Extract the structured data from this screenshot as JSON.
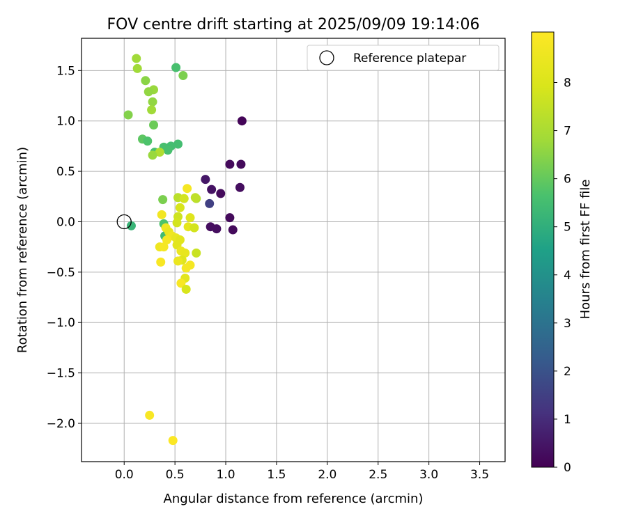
{
  "chart_data": {
    "type": "scatter",
    "title": "FOV centre drift starting at 2025/09/09 19:14:06",
    "xlabel": "Angular distance from reference (arcmin)",
    "ylabel": "Rotation from reference (arcmin)",
    "xlim": [
      -0.42,
      3.75
    ],
    "ylim": [
      -2.38,
      1.82
    ],
    "xticks": [
      0.0,
      0.5,
      1.0,
      1.5,
      2.0,
      2.5,
      3.0,
      3.5
    ],
    "xtick_labels": [
      "0.0",
      "0.5",
      "1.0",
      "1.5",
      "2.0",
      "2.5",
      "3.0",
      "3.5"
    ],
    "yticks": [
      1.5,
      1.0,
      0.5,
      0.0,
      -0.5,
      -1.0,
      -1.5,
      -2.0
    ],
    "ytick_labels": [
      "1.5",
      "1.0",
      "0.5",
      "0.0",
      "−0.5",
      "−1.0",
      "−1.5",
      "−2.0"
    ],
    "grid": true,
    "legend": {
      "position": "top-right",
      "entries": [
        "Reference platepar"
      ]
    },
    "reference_point": {
      "x": 0.0,
      "y": 0.0
    },
    "colorbar": {
      "label": "Hours from first FF file",
      "colormap": "viridis",
      "range": [
        0,
        9.05
      ],
      "ticks": [
        0,
        1,
        2,
        3,
        4,
        5,
        6,
        7,
        8
      ],
      "tick_labels": [
        "0",
        "1",
        "2",
        "3",
        "4",
        "5",
        "6",
        "7",
        "8"
      ]
    },
    "points": [
      {
        "x": 1.16,
        "y": 1.0,
        "h": 0.1
      },
      {
        "x": 1.04,
        "y": 0.57,
        "h": 0.2
      },
      {
        "x": 1.15,
        "y": 0.57,
        "h": 0.2
      },
      {
        "x": 1.14,
        "y": 0.34,
        "h": 0.3
      },
      {
        "x": 0.8,
        "y": 0.42,
        "h": 0.5
      },
      {
        "x": 0.86,
        "y": 0.32,
        "h": 0.4
      },
      {
        "x": 0.95,
        "y": 0.28,
        "h": 0.2
      },
      {
        "x": 0.84,
        "y": 0.18,
        "h": 1.5
      },
      {
        "x": 1.04,
        "y": 0.04,
        "h": 0.2
      },
      {
        "x": 0.85,
        "y": -0.05,
        "h": 0.3
      },
      {
        "x": 0.91,
        "y": -0.07,
        "h": 0.3
      },
      {
        "x": 1.07,
        "y": -0.08,
        "h": 0.2
      },
      {
        "x": 0.12,
        "y": 1.62,
        "h": 6.8
      },
      {
        "x": 0.13,
        "y": 1.52,
        "h": 6.8
      },
      {
        "x": 0.51,
        "y": 1.53,
        "h": 5.6
      },
      {
        "x": 0.58,
        "y": 1.45,
        "h": 6.3
      },
      {
        "x": 0.21,
        "y": 1.4,
        "h": 6.5
      },
      {
        "x": 0.29,
        "y": 1.31,
        "h": 6.7
      },
      {
        "x": 0.24,
        "y": 1.29,
        "h": 6.6
      },
      {
        "x": 0.28,
        "y": 1.19,
        "h": 6.6
      },
      {
        "x": 0.27,
        "y": 1.11,
        "h": 6.8
      },
      {
        "x": 0.04,
        "y": 1.06,
        "h": 6.4
      },
      {
        "x": 0.29,
        "y": 0.96,
        "h": 6.1
      },
      {
        "x": 0.18,
        "y": 0.82,
        "h": 5.9
      },
      {
        "x": 0.23,
        "y": 0.8,
        "h": 5.7
      },
      {
        "x": 0.53,
        "y": 0.77,
        "h": 5.5
      },
      {
        "x": 0.39,
        "y": 0.74,
        "h": 5.6
      },
      {
        "x": 0.46,
        "y": 0.75,
        "h": 5.5
      },
      {
        "x": 0.43,
        "y": 0.71,
        "h": 5.6
      },
      {
        "x": 0.3,
        "y": 0.69,
        "h": 5.6
      },
      {
        "x": 0.35,
        "y": 0.69,
        "h": 7.1
      },
      {
        "x": 0.28,
        "y": 0.66,
        "h": 6.7
      },
      {
        "x": 0.07,
        "y": -0.04,
        "h": 5.2
      },
      {
        "x": 0.38,
        "y": 0.22,
        "h": 6.3
      },
      {
        "x": 0.39,
        "y": -0.02,
        "h": 5.7
      },
      {
        "x": 0.4,
        "y": -0.14,
        "h": 5.4
      },
      {
        "x": 0.62,
        "y": 0.33,
        "h": 8.8
      },
      {
        "x": 0.53,
        "y": 0.24,
        "h": 7.3
      },
      {
        "x": 0.59,
        "y": 0.23,
        "h": 7.8
      },
      {
        "x": 0.71,
        "y": 0.23,
        "h": 7.2
      },
      {
        "x": 0.7,
        "y": 0.24,
        "h": 7.4
      },
      {
        "x": 0.55,
        "y": 0.14,
        "h": 7.9
      },
      {
        "x": 0.53,
        "y": 0.05,
        "h": 7.7
      },
      {
        "x": 0.37,
        "y": 0.07,
        "h": 8.7
      },
      {
        "x": 0.65,
        "y": 0.04,
        "h": 8.1
      },
      {
        "x": 0.52,
        "y": -0.01,
        "h": 7.8
      },
      {
        "x": 0.63,
        "y": -0.05,
        "h": 8.3
      },
      {
        "x": 0.69,
        "y": -0.06,
        "h": 7.8
      },
      {
        "x": 0.41,
        "y": -0.06,
        "h": 8.6
      },
      {
        "x": 0.44,
        "y": -0.1,
        "h": 8.4
      },
      {
        "x": 0.47,
        "y": -0.14,
        "h": 8.6
      },
      {
        "x": 0.42,
        "y": -0.18,
        "h": 8.8
      },
      {
        "x": 0.51,
        "y": -0.16,
        "h": 8.4
      },
      {
        "x": 0.55,
        "y": -0.18,
        "h": 8.2
      },
      {
        "x": 0.35,
        "y": -0.25,
        "h": 8.6
      },
      {
        "x": 0.39,
        "y": -0.25,
        "h": 8.8
      },
      {
        "x": 0.52,
        "y": -0.23,
        "h": 8.2
      },
      {
        "x": 0.56,
        "y": -0.29,
        "h": 8.5
      },
      {
        "x": 0.6,
        "y": -0.31,
        "h": 8.4
      },
      {
        "x": 0.71,
        "y": -0.31,
        "h": 7.6
      },
      {
        "x": 0.57,
        "y": -0.38,
        "h": 8.1
      },
      {
        "x": 0.53,
        "y": -0.39,
        "h": 8.5
      },
      {
        "x": 0.36,
        "y": -0.4,
        "h": 8.9
      },
      {
        "x": 0.65,
        "y": -0.43,
        "h": 8.8
      },
      {
        "x": 0.61,
        "y": -0.46,
        "h": 8.8
      },
      {
        "x": 0.6,
        "y": -0.56,
        "h": 8.2
      },
      {
        "x": 0.56,
        "y": -0.61,
        "h": 8.9
      },
      {
        "x": 0.61,
        "y": -0.67,
        "h": 7.9
      },
      {
        "x": 0.25,
        "y": -1.92,
        "h": 8.9
      },
      {
        "x": 0.48,
        "y": -2.17,
        "h": 9.0
      }
    ]
  }
}
